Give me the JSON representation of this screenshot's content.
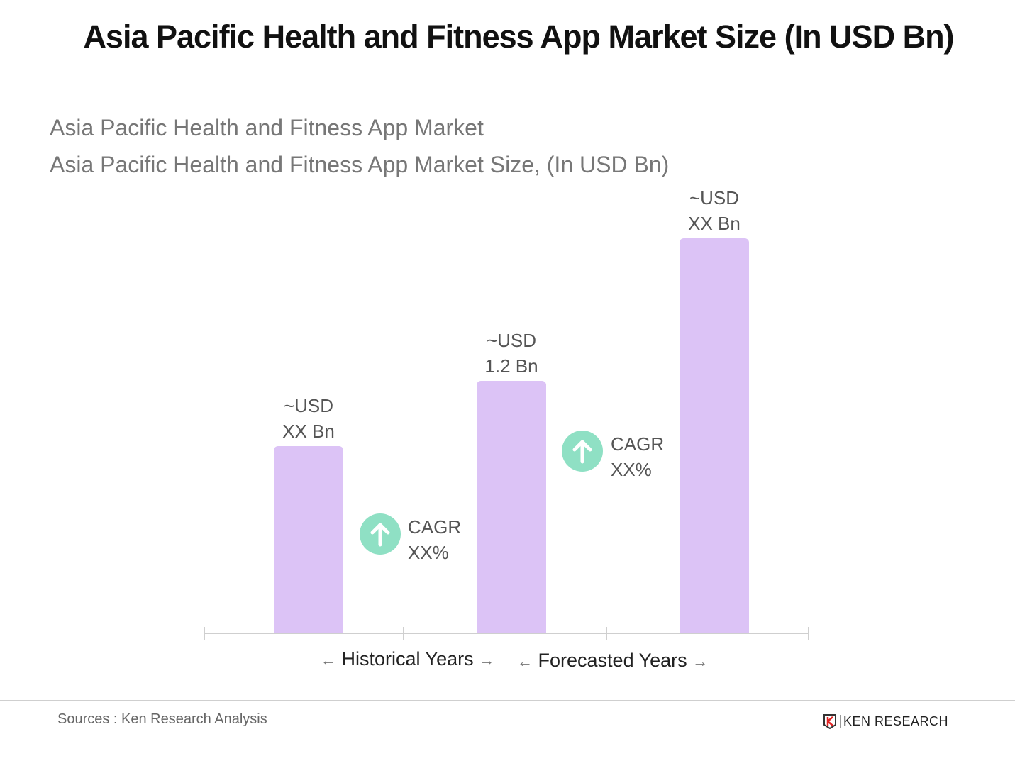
{
  "chart_data": {
    "type": "bar",
    "title": "Asia Pacific Health and Fitness App Market Size (In USD Bn)",
    "subtitle_lines": [
      "Asia Pacific Health and Fitness App Market",
      "Asia Pacific Health and Fitness App Market Size, (In USD Bn)"
    ],
    "categories": [
      "",
      "",
      ""
    ],
    "values": [
      0.89,
      1.2,
      1.88
    ],
    "data_labels": [
      {
        "line1": "~USD",
        "line2": "XX Bn"
      },
      {
        "line1": "~USD",
        "line2": "1.2 Bn"
      },
      {
        "line1": "~USD",
        "line2": "XX Bn"
      }
    ],
    "annotations": [
      {
        "label": "CAGR",
        "value": "XX%",
        "icon": "arrow-up-circle-icon"
      },
      {
        "label": "CAGR",
        "value": "XX%",
        "icon": "arrow-up-circle-icon"
      }
    ],
    "periods": [
      "Historical Years",
      "Forecasted Years"
    ],
    "xlabel": "",
    "ylabel": "",
    "ylim": [
      0,
      1.88
    ],
    "grid": false,
    "legend": "none",
    "colors": {
      "bar": "#dcc3f6",
      "cagr_icon": "#8fe0c4",
      "axis": "#cfcfcf"
    }
  },
  "footer": {
    "source": "Sources : Ken Research Analysis",
    "logo_text": "KEN RESEARCH"
  }
}
